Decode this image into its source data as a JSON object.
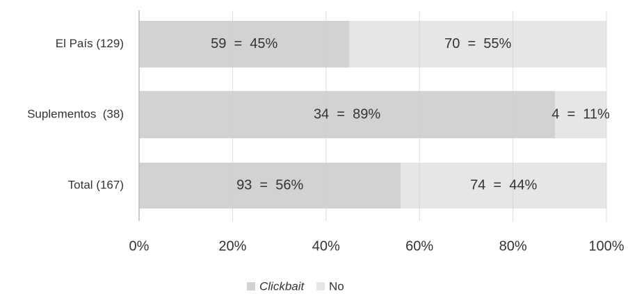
{
  "chart_data": {
    "type": "stacked_hbar",
    "categories": [
      "El País (129)",
      "Suplementos  (38)",
      "Total (167)"
    ],
    "series": [
      {
        "name": "Clickbait",
        "color": "#d2d2d2",
        "values": [
          45,
          89,
          56
        ],
        "value_labels": [
          "59  =  45%",
          "34  =  89%",
          "93  =  56%"
        ]
      },
      {
        "name": "No",
        "color": "#e6e6e6",
        "values": [
          55,
          11,
          44
        ],
        "value_labels": [
          "70  =  55%",
          "4  =  11%",
          "74  =  44%"
        ]
      }
    ],
    "xlim": [
      0,
      100
    ],
    "xticks": [
      {
        "value": 0,
        "label": "0%"
      },
      {
        "value": 20,
        "label": "20%"
      },
      {
        "value": 40,
        "label": "40%"
      },
      {
        "value": 60,
        "label": "60%"
      },
      {
        "value": 80,
        "label": "80%"
      },
      {
        "value": 100,
        "label": "100%"
      }
    ],
    "grid": true,
    "legend": "bottom"
  }
}
